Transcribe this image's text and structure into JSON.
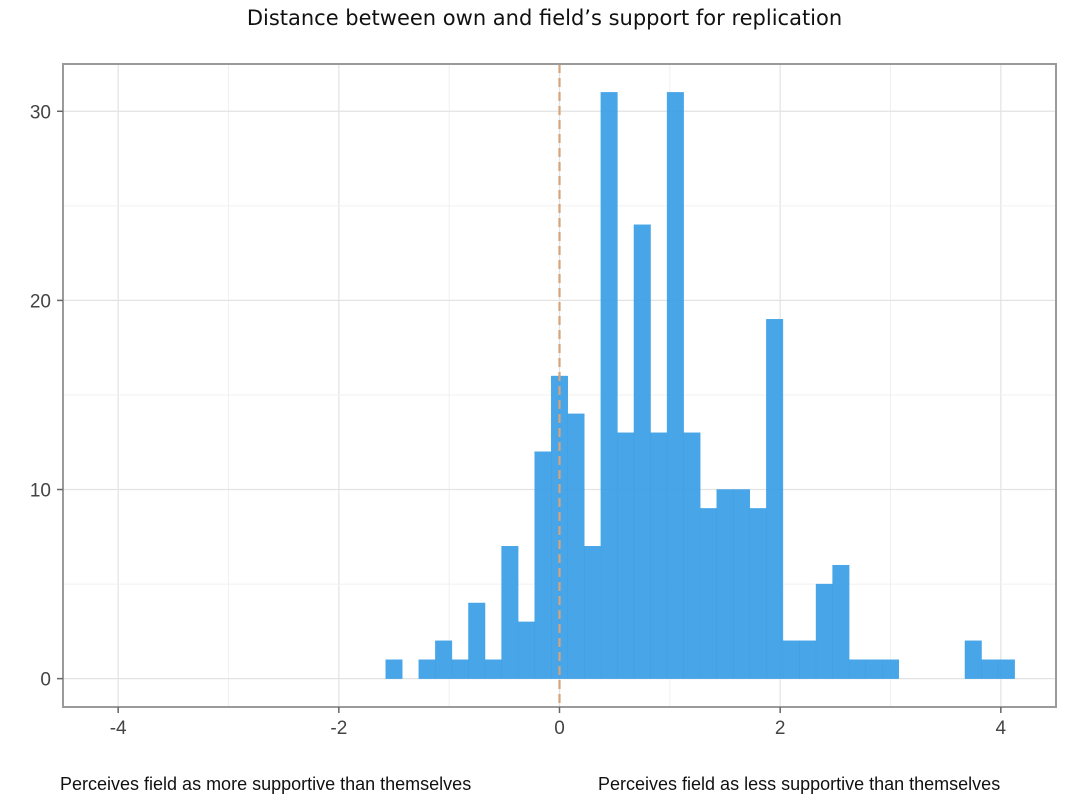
{
  "chart_data": {
    "type": "bar",
    "title": "Distance between own and field’s support for replication",
    "xlabel": "",
    "ylabel": "",
    "xlim": [
      -4.5,
      4.5
    ],
    "ylim": [
      -1.5,
      32.5
    ],
    "xticks": [
      -4,
      -2,
      0,
      2,
      4
    ],
    "yticks": [
      0,
      10,
      20,
      30
    ],
    "bin_width": 0.15,
    "bins": [
      {
        "x": -1.5,
        "count": 1
      },
      {
        "x": -1.2,
        "count": 1
      },
      {
        "x": -1.05,
        "count": 2
      },
      {
        "x": -0.9,
        "count": 1
      },
      {
        "x": -0.75,
        "count": 4
      },
      {
        "x": -0.6,
        "count": 1
      },
      {
        "x": -0.45,
        "count": 7
      },
      {
        "x": -0.3,
        "count": 3
      },
      {
        "x": -0.15,
        "count": 12
      },
      {
        "x": 0.0,
        "count": 16
      },
      {
        "x": 0.15,
        "count": 14
      },
      {
        "x": 0.3,
        "count": 7
      },
      {
        "x": 0.45,
        "count": 31
      },
      {
        "x": 0.6,
        "count": 13
      },
      {
        "x": 0.75,
        "count": 24
      },
      {
        "x": 0.9,
        "count": 13
      },
      {
        "x": 1.05,
        "count": 31
      },
      {
        "x": 1.2,
        "count": 13
      },
      {
        "x": 1.35,
        "count": 9
      },
      {
        "x": 1.5,
        "count": 10
      },
      {
        "x": 1.65,
        "count": 10
      },
      {
        "x": 1.8,
        "count": 9
      },
      {
        "x": 1.95,
        "count": 19
      },
      {
        "x": 2.1,
        "count": 2
      },
      {
        "x": 2.25,
        "count": 2
      },
      {
        "x": 2.4,
        "count": 5
      },
      {
        "x": 2.55,
        "count": 6
      },
      {
        "x": 2.7,
        "count": 1
      },
      {
        "x": 2.85,
        "count": 1
      },
      {
        "x": 3.0,
        "count": 1
      },
      {
        "x": 3.75,
        "count": 2
      },
      {
        "x": 3.9,
        "count": 1
      },
      {
        "x": 4.05,
        "count": 1
      }
    ],
    "reference_line": {
      "x": 0,
      "style": "dashed",
      "color": "#d4a47c"
    },
    "bar_color": "#3a9fe6",
    "grid": true,
    "legend": "none"
  },
  "annotations": {
    "left": "Perceives field as more supportive than themselves",
    "right": "Perceives field as less supportive than themselves"
  }
}
